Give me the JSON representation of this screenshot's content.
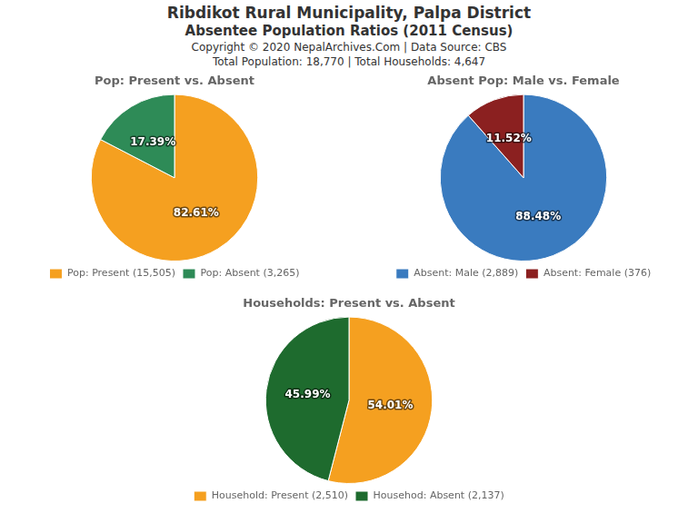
{
  "title": "Ribdikot Rural Municipality, Palpa District",
  "subtitle": "Absentee Population Ratios (2011 Census)",
  "annotations": [
    "Copyright © 2020 NepalArchives.Com | Data Source: CBS",
    "Total Population: 18,770 | Total Households: 4,647"
  ],
  "chart_data": [
    {
      "type": "pie",
      "title": "Pop: Present vs. Absent",
      "categories": [
        "Pop: Present (15,505)",
        "Pop: Absent (3,265)"
      ],
      "values": [
        82.61,
        17.39
      ],
      "value_labels": [
        "82.61%",
        "17.39%"
      ],
      "colors": [
        "#f5a020",
        "#2e8b57"
      ],
      "data_labels": true,
      "legend": "bottom"
    },
    {
      "type": "pie",
      "title": "Absent Pop: Male vs. Female",
      "categories": [
        "Absent: Male (2,889)",
        "Absent: Female (376)"
      ],
      "values": [
        88.48,
        11.52
      ],
      "value_labels": [
        "88.48%",
        "11.52%"
      ],
      "colors": [
        "#3a7bbf",
        "#8b2020"
      ],
      "data_labels": true,
      "legend": "bottom"
    },
    {
      "type": "pie",
      "title": "Households: Present vs. Absent",
      "categories": [
        "Household: Present (2,510)",
        "Househod: Absent (2,137)"
      ],
      "values": [
        54.01,
        45.99
      ],
      "value_labels": [
        "54.01%",
        "45.99%"
      ],
      "colors": [
        "#f5a020",
        "#1e6b2e"
      ],
      "data_labels": true,
      "legend": "bottom"
    }
  ]
}
